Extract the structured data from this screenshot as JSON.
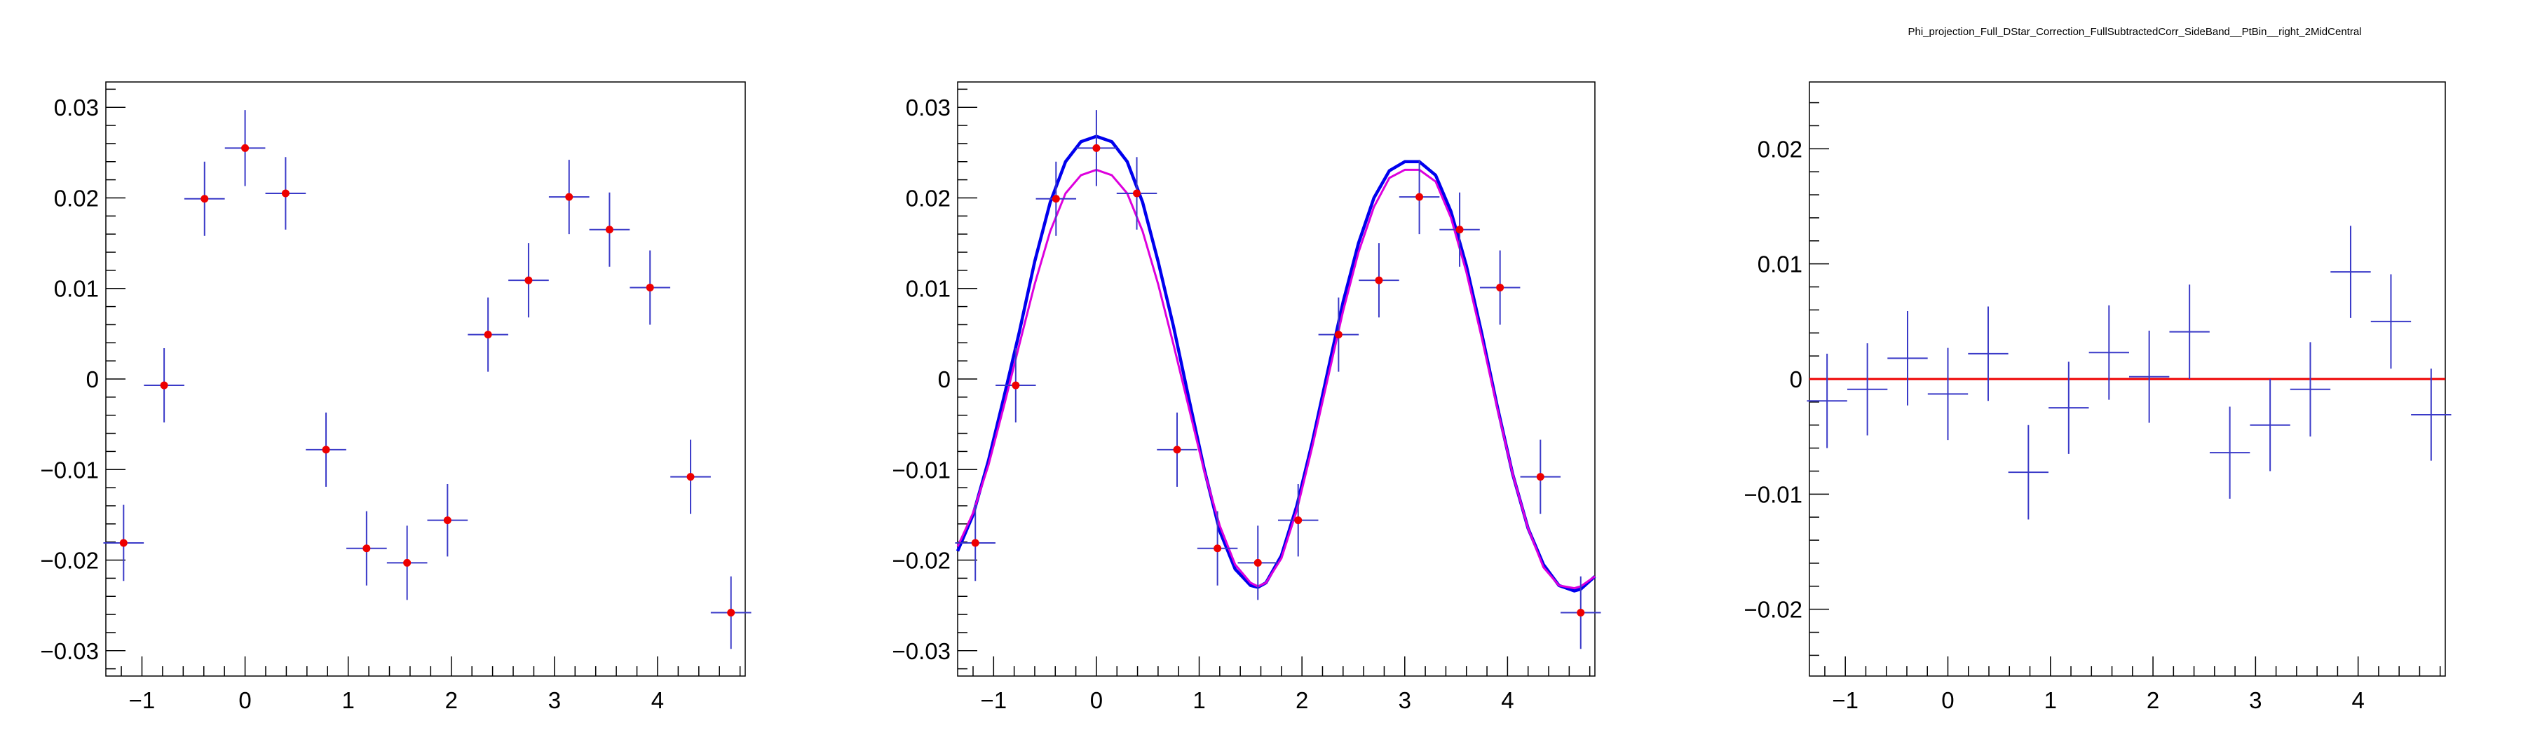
{
  "title": "Phi_projection_Full_DStar_Correction_FullSubtractedCorr_SideBand__PtBin__right_2MidCentral",
  "colors": {
    "points": "#ee0000",
    "errors": "#3a3ac8",
    "fit_total": "#0000ee",
    "fit_component": "#dd00dd",
    "zero_line": "#ee0000",
    "frame": "#000000"
  },
  "chart_data": [
    {
      "type": "scatter",
      "id": "left",
      "xlim": [
        -1.35,
        4.85
      ],
      "ylim": [
        -0.0328,
        0.0328
      ],
      "x_ticks": [
        -1,
        0,
        1,
        2,
        3,
        4
      ],
      "x_tick_labels": [
        "−1",
        "0",
        "1",
        "2",
        "3",
        "4"
      ],
      "y_ticks": [
        -0.03,
        -0.02,
        -0.01,
        0,
        0.01,
        0.02,
        0.03
      ],
      "y_tick_labels": [
        "−0.03",
        "−0.02",
        "−0.01",
        "0",
        "0.01",
        "0.02",
        "0.03"
      ],
      "markers": true,
      "x_halfwidth": 0.196,
      "x": [
        -1.178,
        -0.785,
        -0.393,
        0.0,
        0.393,
        0.785,
        1.178,
        1.571,
        1.963,
        2.356,
        2.749,
        3.142,
        3.534,
        3.927,
        4.32,
        4.712
      ],
      "y": [
        -0.0181,
        -0.0007,
        0.0199,
        0.0255,
        0.0205,
        -0.0078,
        -0.0187,
        -0.0203,
        -0.0156,
        0.0049,
        0.0109,
        0.0201,
        0.0165,
        0.0101,
        -0.0108,
        -0.0258
      ],
      "yerr": [
        0.0042,
        0.0041,
        0.0041,
        0.0042,
        0.004,
        0.0041,
        0.0041,
        0.0041,
        0.004,
        0.0041,
        0.0041,
        0.0041,
        0.0041,
        0.0041,
        0.0041,
        0.004
      ]
    },
    {
      "type": "scatter",
      "id": "middle",
      "xlim": [
        -1.35,
        4.85
      ],
      "ylim": [
        -0.0328,
        0.0328
      ],
      "x_ticks": [
        -1,
        0,
        1,
        2,
        3,
        4
      ],
      "x_tick_labels": [
        "−1",
        "0",
        "1",
        "2",
        "3",
        "4"
      ],
      "y_ticks": [
        -0.03,
        -0.02,
        -0.01,
        0,
        0.01,
        0.02,
        0.03
      ],
      "y_tick_labels": [
        "−0.03",
        "−0.02",
        "−0.01",
        "0",
        "0.01",
        "0.02",
        "0.03"
      ],
      "markers": true,
      "x_halfwidth": 0.196,
      "x": [
        -1.178,
        -0.785,
        -0.393,
        0.0,
        0.393,
        0.785,
        1.178,
        1.571,
        1.963,
        2.356,
        2.749,
        3.142,
        3.534,
        3.927,
        4.32,
        4.712
      ],
      "y": [
        -0.0181,
        -0.0007,
        0.0199,
        0.0255,
        0.0205,
        -0.0078,
        -0.0187,
        -0.0203,
        -0.0156,
        0.0049,
        0.0109,
        0.0201,
        0.0165,
        0.0101,
        -0.0108,
        -0.0258
      ],
      "yerr": [
        0.0042,
        0.0041,
        0.0041,
        0.0042,
        0.004,
        0.0041,
        0.0041,
        0.0041,
        0.004,
        0.0041,
        0.0041,
        0.0041,
        0.0041,
        0.0041,
        0.0041,
        0.004
      ],
      "curves": [
        {
          "x": [
            -1.35,
            -1.2,
            -1.05,
            -0.9,
            -0.75,
            -0.6,
            -0.45,
            -0.3,
            -0.15,
            0.0,
            0.15,
            0.3,
            0.45,
            0.6,
            0.75,
            0.9,
            1.05,
            1.2,
            1.35,
            1.5,
            1.571,
            1.65,
            1.8,
            1.95,
            2.1,
            2.25,
            2.4,
            2.55,
            2.7,
            2.85,
            3.0,
            3.142,
            3.3,
            3.45,
            3.6,
            3.75,
            3.9,
            4.05,
            4.2,
            4.35,
            4.5,
            4.65,
            4.712,
            4.85
          ],
          "y": [
            -0.019,
            -0.015,
            -0.009,
            -0.002,
            0.0052,
            0.013,
            0.0195,
            0.024,
            0.0262,
            0.0268,
            0.0262,
            0.024,
            0.0195,
            0.013,
            0.0058,
            -0.0022,
            -0.01,
            -0.0168,
            -0.021,
            -0.0228,
            -0.023,
            -0.0225,
            -0.0195,
            -0.014,
            -0.007,
            0.0008,
            0.0085,
            0.015,
            0.02,
            0.023,
            0.024,
            0.024,
            0.0225,
            0.0185,
            0.0125,
            0.005,
            -0.003,
            -0.0105,
            -0.0165,
            -0.0205,
            -0.0228,
            -0.0234,
            -0.0232,
            -0.0218
          ]
        },
        {
          "x": [
            -1.35,
            -1.2,
            -1.05,
            -0.9,
            -0.75,
            -0.6,
            -0.45,
            -0.3,
            -0.15,
            0.0,
            0.15,
            0.3,
            0.45,
            0.6,
            0.75,
            0.9,
            1.05,
            1.2,
            1.35,
            1.5,
            1.571,
            1.65,
            1.8,
            1.95,
            2.1,
            2.25,
            2.4,
            2.55,
            2.7,
            2.85,
            3.0,
            3.142,
            3.3,
            3.45,
            3.6,
            3.75,
            3.9,
            4.05,
            4.2,
            4.35,
            4.5,
            4.65,
            4.712,
            4.85
          ],
          "y": [
            -0.0185,
            -0.0148,
            -0.0095,
            -0.003,
            0.0038,
            0.0105,
            0.0163,
            0.0205,
            0.0225,
            0.0231,
            0.0225,
            0.0205,
            0.0163,
            0.0105,
            0.0038,
            -0.0032,
            -0.0102,
            -0.0162,
            -0.0205,
            -0.0225,
            -0.0229,
            -0.0225,
            -0.0198,
            -0.0145,
            -0.0075,
            0.0,
            0.0075,
            0.014,
            0.019,
            0.0222,
            0.0231,
            0.0231,
            0.0218,
            0.0178,
            0.0118,
            0.0045,
            -0.0032,
            -0.0105,
            -0.0165,
            -0.0208,
            -0.0228,
            -0.0231,
            -0.0229,
            -0.0218
          ]
        }
      ]
    },
    {
      "type": "scatter",
      "id": "right",
      "xlim": [
        -1.35,
        4.85
      ],
      "ylim": [
        -0.0258,
        0.0258
      ],
      "x_ticks": [
        -1,
        0,
        1,
        2,
        3,
        4
      ],
      "x_tick_labels": [
        "−1",
        "0",
        "1",
        "2",
        "3",
        "4"
      ],
      "y_ticks": [
        -0.02,
        -0.01,
        0,
        0.01,
        0.02
      ],
      "y_tick_labels": [
        "−0.02",
        "−0.01",
        "0",
        "0.01",
        "0.02"
      ],
      "markers": false,
      "x_halfwidth": 0.196,
      "x": [
        -1.178,
        -0.785,
        -0.393,
        0.0,
        0.393,
        0.785,
        1.178,
        1.571,
        1.963,
        2.356,
        2.749,
        3.142,
        3.534,
        3.927,
        4.32,
        4.712
      ],
      "y": [
        -0.0019,
        -0.0009,
        0.0018,
        -0.0013,
        0.0022,
        -0.0081,
        -0.0025,
        0.0023,
        0.0002,
        0.0041,
        -0.0064,
        -0.004,
        -0.0009,
        0.0093,
        0.005,
        -0.0031
      ],
      "yerr": [
        0.0041,
        0.004,
        0.0041,
        0.004,
        0.0041,
        0.0041,
        0.004,
        0.0041,
        0.004,
        0.0041,
        0.004,
        0.004,
        0.0041,
        0.004,
        0.0041,
        0.004
      ],
      "hline": 0
    }
  ]
}
